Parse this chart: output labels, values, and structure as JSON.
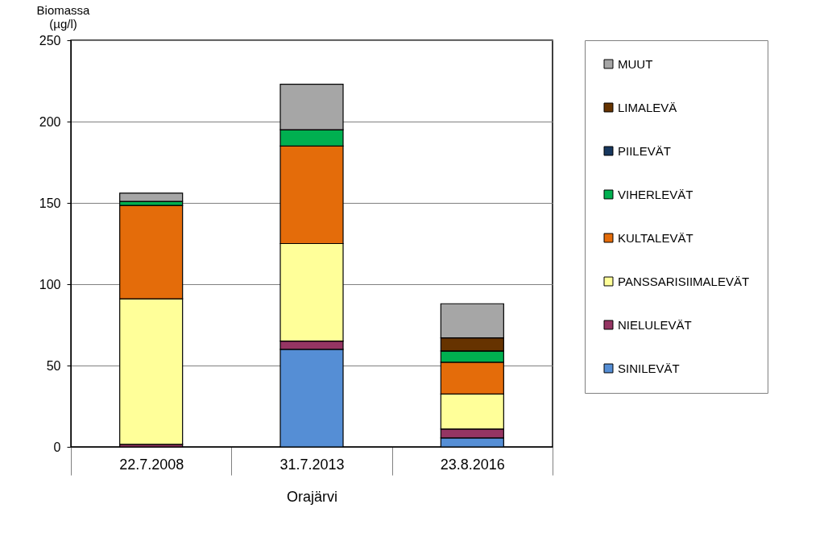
{
  "chart_data": {
    "type": "bar",
    "stacked": true,
    "categories": [
      "22.7.2008",
      "31.7.2013",
      "23.8.2016"
    ],
    "xlabel": "Orajärvi",
    "ylabel": "Biomassa\n(µg/l)",
    "ylim": [
      0,
      250
    ],
    "yticks": [
      0,
      50,
      100,
      150,
      200,
      250
    ],
    "grid": "y",
    "legend": "right",
    "series": [
      {
        "name": "SINILEVÄT",
        "color": "#558ed5",
        "values": [
          0,
          60,
          5.5
        ]
      },
      {
        "name": "NIELULEVÄT",
        "color": "#953563",
        "values": [
          1.5,
          5,
          5.5
        ]
      },
      {
        "name": "PANSSARISIIMALEVÄT",
        "color": "#ffff99",
        "values": [
          89.5,
          60,
          21.5
        ]
      },
      {
        "name": "KULTALEVÄT",
        "color": "#e46c0a",
        "values": [
          57.5,
          60,
          19.5
        ]
      },
      {
        "name": "VIHERLEVÄT",
        "color": "#00b050",
        "values": [
          2.5,
          10,
          7
        ]
      },
      {
        "name": "PIILEVÄT",
        "color": "#17375e",
        "values": [
          0,
          0,
          0
        ]
      },
      {
        "name": "LIMALEVÄ",
        "color": "#663300",
        "values": [
          0,
          0,
          8
        ]
      },
      {
        "name": "MUUT",
        "color": "#a6a6a6",
        "values": [
          5,
          28,
          21
        ]
      }
    ]
  }
}
